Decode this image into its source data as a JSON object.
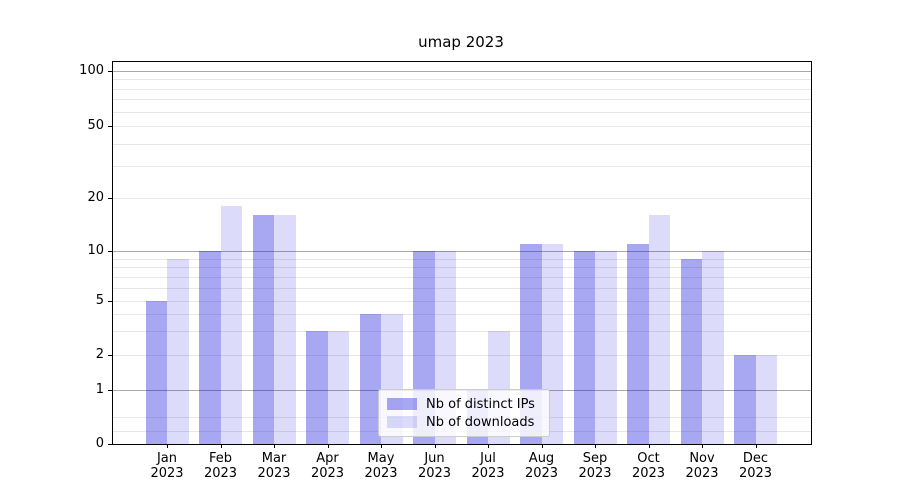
{
  "title": "umap 2023",
  "colors": {
    "bar_ips": "rgba(20,20,220,0.37)",
    "bar_downloads": "rgba(20,20,220,0.15)",
    "grid_major": "#a9a9a9",
    "grid_minor": "#e7e7e7",
    "axis": "#000000",
    "legend_border": "#cccccc",
    "legend_bg": "rgba(255,255,255,0.8)",
    "text": "#000000"
  },
  "chart_data": {
    "type": "bar",
    "title": "umap 2023",
    "months": [
      "Jan",
      "Feb",
      "Mar",
      "Apr",
      "May",
      "Jun",
      "Jul",
      "Aug",
      "Sep",
      "Oct",
      "Nov",
      "Dec"
    ],
    "year": "2023",
    "series": [
      {
        "name": "Nb of distinct IPs",
        "values": [
          5,
          10,
          16,
          3,
          4,
          10,
          1,
          11,
          10,
          11,
          9,
          2
        ]
      },
      {
        "name": "Nb of downloads",
        "values": [
          9,
          18,
          16,
          3,
          4,
          10,
          3,
          11,
          10,
          16,
          10,
          2
        ]
      }
    ],
    "yticks": [
      0,
      1,
      2,
      5,
      10,
      20,
      50,
      100
    ],
    "ytick_labels": [
      "0",
      "1",
      "2",
      "5",
      "10",
      "20",
      "50",
      "100"
    ],
    "major_grid_values": [
      1,
      10,
      100
    ],
    "minor_grid_values": [
      0.25,
      0.5,
      2,
      3,
      4,
      5,
      6,
      7,
      8,
      9,
      20,
      30,
      40,
      50,
      60,
      70,
      80,
      90
    ],
    "scale": "symlog",
    "ylim": [
      0,
      112
    ],
    "xlabel": "",
    "ylabel": "",
    "grid": "both",
    "legend_position": "lower center"
  }
}
